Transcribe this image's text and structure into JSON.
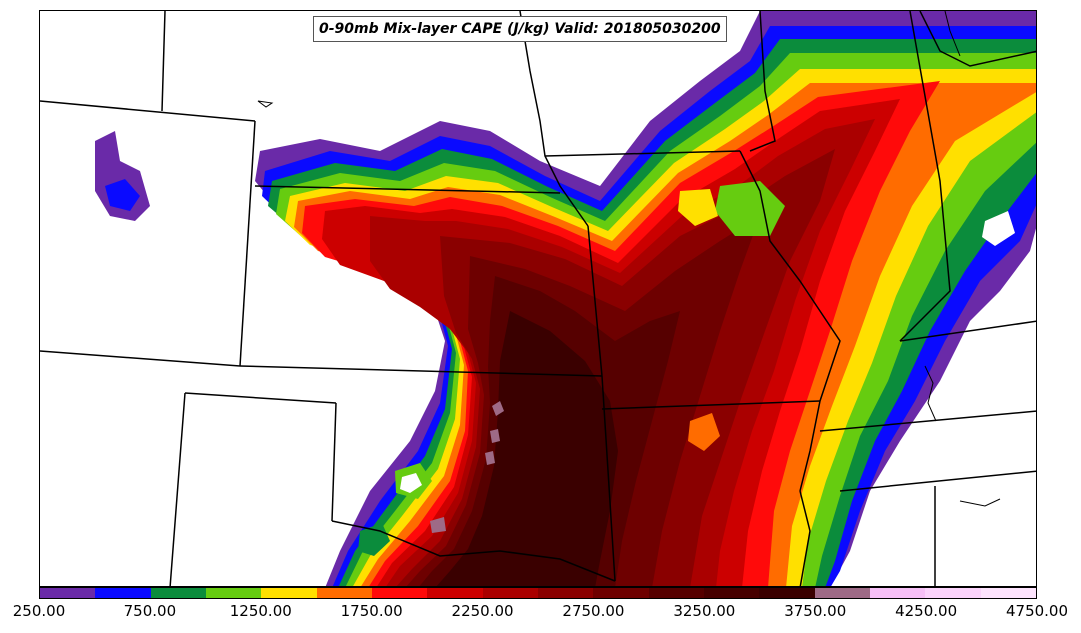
{
  "title": "0-90mb Mix-layer CAPE (J/kg) Valid: 201805030200",
  "colorbar": {
    "tick_labels": [
      "250.00",
      "750.00",
      "1250.00",
      "1750.00",
      "2250.00",
      "2750.00",
      "3250.00",
      "3750.00",
      "4250.00",
      "4750.00"
    ],
    "min": 250,
    "max": 4750,
    "step": 250,
    "colors": [
      "#6a2aa8",
      "#0a0aff",
      "#0b8c3c",
      "#66cc10",
      "#ffe000",
      "#ff6c00",
      "#ff0a0a",
      "#cc0000",
      "#aa0000",
      "#8a0000",
      "#6e0000",
      "#560000",
      "#460000",
      "#3a0000",
      "#9e6a86",
      "#f6bff6",
      "#fbd3fb",
      "#fde3fd"
    ]
  },
  "map": {
    "field": "0-90mb Mix-layer CAPE",
    "units": "J/kg",
    "valid_time": "201805030200"
  }
}
